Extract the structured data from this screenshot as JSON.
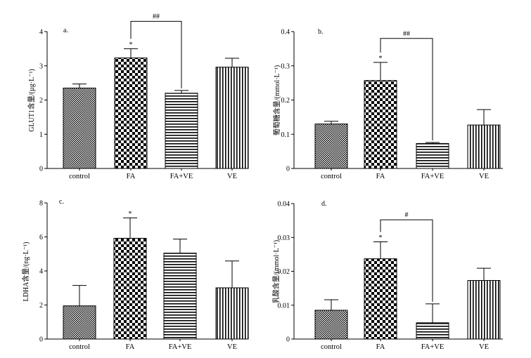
{
  "chart_data": [
    {
      "type": "bar",
      "panel_label": "a.",
      "ylabel": "GLUT1含量/(µg·L⁻¹)",
      "categories": [
        "control",
        "FA",
        "FA+VE",
        "VE"
      ],
      "values": [
        2.35,
        3.23,
        2.2,
        2.96
      ],
      "errors": [
        0.12,
        0.27,
        0.08,
        0.26
      ],
      "ylim": [
        0,
        4
      ],
      "yticks": [
        "0",
        "1",
        "2",
        "3",
        "4"
      ],
      "star": {
        "category": "FA",
        "text": "*"
      },
      "bracket": {
        "from": "FA",
        "to": "FA+VE",
        "text": "##",
        "level": 4.3
      }
    },
    {
      "type": "bar",
      "panel_label": "b.",
      "ylabel": "葡萄糖含量/(mmol·L⁻¹)",
      "categories": [
        "control",
        "FA",
        "FA+VE",
        "VE"
      ],
      "values": [
        0.13,
        0.257,
        0.073,
        0.127
      ],
      "errors": [
        0.008,
        0.053,
        0.003,
        0.045
      ],
      "ylim": [
        0,
        0.4
      ],
      "yticks": [
        "0",
        "0.1",
        "0.2",
        "0.3",
        "0.4"
      ],
      "star": {
        "category": "FA",
        "text": "*"
      },
      "bracket": {
        "from": "FA",
        "to": "FA+VE",
        "text": "##",
        "level": 0.38
      }
    },
    {
      "type": "bar",
      "panel_label": "c.",
      "ylabel": "LDHA含量/(ng·L⁻¹)",
      "categories": [
        "control",
        "FA",
        "FA+VE",
        "VE"
      ],
      "values": [
        1.95,
        5.92,
        5.05,
        3.01
      ],
      "errors": [
        1.2,
        1.2,
        0.82,
        1.58
      ],
      "ylim": [
        0,
        8
      ],
      "yticks": [
        "0",
        "2",
        "4",
        "6",
        "8"
      ],
      "star": {
        "category": "FA",
        "text": "*"
      },
      "bracket": null
    },
    {
      "type": "bar",
      "panel_label": "d.",
      "ylabel": "乳酸含量/(mmol·L⁻¹)",
      "categories": [
        "control",
        "FA",
        "FA+VE",
        "VE"
      ],
      "values": [
        0.0085,
        0.0237,
        0.0048,
        0.0173
      ],
      "errors": [
        0.0031,
        0.005,
        0.0056,
        0.0036
      ],
      "ylim": [
        0,
        0.04
      ],
      "yticks": [
        "0",
        "0.01",
        "0.02",
        "0.03",
        "0.04"
      ],
      "star": {
        "category": "FA",
        "text": "*"
      },
      "bracket": {
        "from": "FA",
        "to": "FA+VE",
        "text": "#",
        "level": 0.0352
      }
    }
  ]
}
